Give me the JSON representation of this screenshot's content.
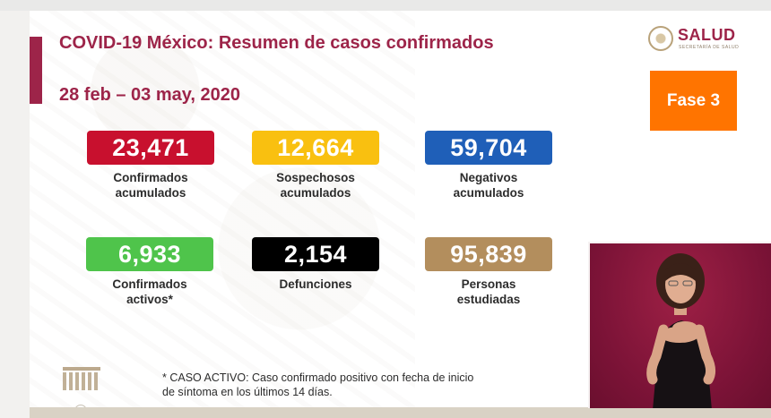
{
  "slide": {
    "title": "COVID-19 México: Resumen de casos confirmados",
    "date_range": "28 feb – 03 may, 2020",
    "logo": {
      "wordmark": "SALUD",
      "subtitle": "SECRETARÍA DE SALUD"
    },
    "phase_label": "Fase 3",
    "stats": [
      {
        "value": "23,471",
        "label_line1": "Confirmados",
        "label_line2": "acumulados",
        "color": "#c8102e"
      },
      {
        "value": "12,664",
        "label_line1": "Sospechosos",
        "label_line2": "acumulados",
        "color": "#f9c010"
      },
      {
        "value": "59,704",
        "label_line1": "Negativos",
        "label_line2": "acumulados",
        "color": "#1f5fb8"
      },
      {
        "value": "6,933",
        "label_line1": "Confirmados",
        "label_line2": "activos*",
        "color": "#4fc44b"
      },
      {
        "value": "2,154",
        "label_line1": "Defunciones",
        "label_line2": "",
        "color": "#000000"
      },
      {
        "value": "95,839",
        "label_line1": "Personas",
        "label_line2": "estudiadas",
        "color": "#b38e5d"
      }
    ],
    "footnote_line1": "* CASO ACTIVO: Caso confirmado positivo con fecha de inicio",
    "footnote_line2": "de síntoma en los últimos 14 días."
  },
  "colors": {
    "brand": "#9d2449",
    "phase": "#ff7400",
    "interpreter_bg": "#8a1a3e"
  },
  "icons": {
    "logo": "mexican-eagle-seal-icon",
    "emblem": "historic-figures-emblem-icon"
  }
}
